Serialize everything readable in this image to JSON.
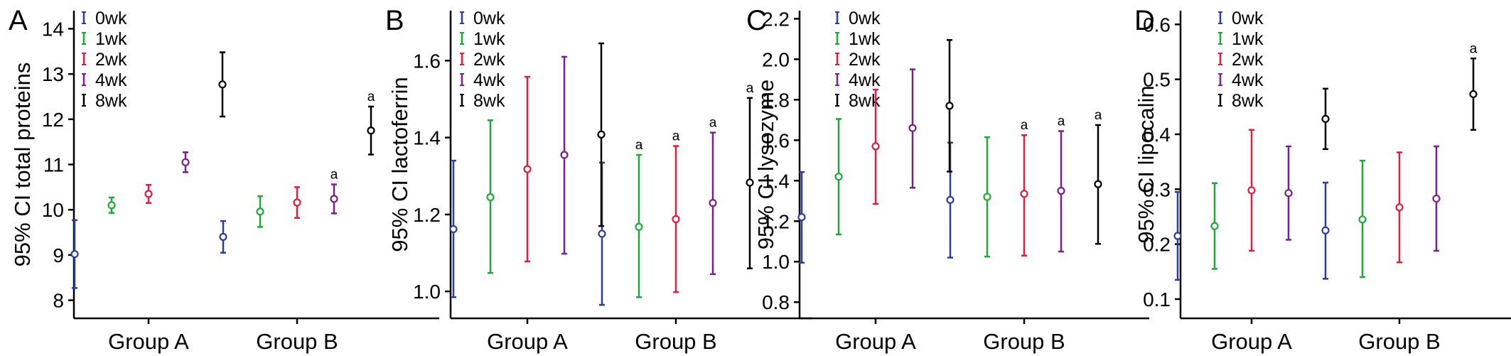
{
  "chart_data": [
    {
      "type": "errorbar",
      "panel": "A",
      "ylabel": "95% CI total proteins",
      "ylim": [
        7.6,
        14.4
      ],
      "yticks": [
        8,
        9,
        10,
        11,
        12,
        13,
        14
      ],
      "categories": [
        "Group A",
        "Group B"
      ],
      "legend_position": "top-left",
      "series": [
        {
          "name": "0wk",
          "color": "#2b3f9a",
          "points": [
            {
              "mean": 9.02,
              "low": 8.27,
              "high": 9.77,
              "annotation": ""
            },
            {
              "mean": 9.4,
              "low": 9.05,
              "high": 9.75,
              "annotation": ""
            }
          ]
        },
        {
          "name": "1wk",
          "color": "#1fa83a",
          "points": [
            {
              "mean": 10.1,
              "low": 9.93,
              "high": 10.27,
              "annotation": ""
            },
            {
              "mean": 9.96,
              "low": 9.62,
              "high": 10.3,
              "annotation": ""
            }
          ]
        },
        {
          "name": "2wk",
          "color": "#e01e3c",
          "points": [
            {
              "mean": 10.35,
              "low": 10.15,
              "high": 10.55,
              "annotation": ""
            },
            {
              "mean": 10.16,
              "low": 9.82,
              "high": 10.5,
              "annotation": ""
            }
          ]
        },
        {
          "name": "4wk",
          "color": "#7b1f8c",
          "points": [
            {
              "mean": 11.05,
              "low": 10.83,
              "high": 11.27,
              "annotation": ""
            },
            {
              "mean": 10.24,
              "low": 9.92,
              "high": 10.56,
              "annotation": "a"
            }
          ]
        },
        {
          "name": "8wk",
          "color": "#000000",
          "points": [
            {
              "mean": 12.77,
              "low": 12.06,
              "high": 13.48,
              "annotation": ""
            },
            {
              "mean": 11.75,
              "low": 11.22,
              "high": 12.28,
              "annotation": "a"
            }
          ]
        }
      ]
    },
    {
      "type": "errorbar",
      "panel": "B",
      "ylabel": "95% CI lactoferrin",
      "ylim": [
        0.93,
        1.73
      ],
      "yticks": [
        1.0,
        1.2,
        1.4,
        1.6
      ],
      "ytick_labels": [
        "1.0",
        "1.2",
        "1.4",
        "1.6"
      ],
      "categories": [
        "Group A",
        "Group B"
      ],
      "legend_position": "top-right",
      "series": [
        {
          "name": "0wk",
          "color": "#2b3f9a",
          "points": [
            {
              "mean": 1.162,
              "low": 0.985,
              "high": 1.34,
              "annotation": ""
            },
            {
              "mean": 1.15,
              "low": 0.965,
              "high": 1.335,
              "annotation": ""
            }
          ]
        },
        {
          "name": "1wk",
          "color": "#1fa83a",
          "points": [
            {
              "mean": 1.245,
              "low": 1.048,
              "high": 1.445,
              "annotation": ""
            },
            {
              "mean": 1.168,
              "low": 0.985,
              "high": 1.355,
              "annotation": "a"
            }
          ]
        },
        {
          "name": "2wk",
          "color": "#e01e3c",
          "points": [
            {
              "mean": 1.318,
              "low": 1.078,
              "high": 1.558,
              "annotation": ""
            },
            {
              "mean": 1.188,
              "low": 0.998,
              "high": 1.378,
              "annotation": "a"
            }
          ]
        },
        {
          "name": "4wk",
          "color": "#7b1f8c",
          "points": [
            {
              "mean": 1.355,
              "low": 1.098,
              "high": 1.61,
              "annotation": ""
            },
            {
              "mean": 1.23,
              "low": 1.045,
              "high": 1.413,
              "annotation": "a"
            }
          ]
        },
        {
          "name": "8wk",
          "color": "#000000",
          "points": [
            {
              "mean": 1.408,
              "low": 1.17,
              "high": 1.645,
              "annotation": ""
            },
            {
              "mean": 1.283,
              "low": 1.06,
              "high": 1.503,
              "annotation": "a"
            }
          ]
        }
      ]
    },
    {
      "type": "errorbar",
      "panel": "C",
      "ylabel": "95% CI lysozyme",
      "ylim": [
        0.72,
        2.24
      ],
      "yticks": [
        0.8,
        1.0,
        1.2,
        1.4,
        1.6,
        1.8,
        2.0,
        2.2
      ],
      "ytick_labels": [
        "0.8",
        "1.0",
        "1.2",
        "1.4",
        "1.6",
        "1.8",
        "2.0",
        "2.2"
      ],
      "categories": [
        "Group A",
        "Group B"
      ],
      "legend_position": "top-left",
      "series": [
        {
          "name": "0wk",
          "color": "#2b3f9a",
          "points": [
            {
              "mean": 1.22,
              "low": 0.995,
              "high": 1.443,
              "annotation": ""
            },
            {
              "mean": 1.305,
              "low": 1.02,
              "high": 1.588,
              "annotation": ""
            }
          ]
        },
        {
          "name": "1wk",
          "color": "#1fa83a",
          "points": [
            {
              "mean": 1.42,
              "low": 1.135,
              "high": 1.705,
              "annotation": ""
            },
            {
              "mean": 1.32,
              "low": 1.025,
              "high": 1.615,
              "annotation": ""
            }
          ]
        },
        {
          "name": "2wk",
          "color": "#e01e3c",
          "points": [
            {
              "mean": 1.57,
              "low": 1.285,
              "high": 1.85,
              "annotation": ""
            },
            {
              "mean": 1.335,
              "low": 1.03,
              "high": 1.625,
              "annotation": "a"
            }
          ]
        },
        {
          "name": "4wk",
          "color": "#7b1f8c",
          "points": [
            {
              "mean": 1.66,
              "low": 1.365,
              "high": 1.95,
              "annotation": ""
            },
            {
              "mean": 1.35,
              "low": 1.05,
              "high": 1.645,
              "annotation": "a"
            }
          ]
        },
        {
          "name": "8wk",
          "color": "#000000",
          "points": [
            {
              "mean": 1.77,
              "low": 1.445,
              "high": 2.095,
              "annotation": ""
            },
            {
              "mean": 1.383,
              "low": 1.088,
              "high": 1.675,
              "annotation": "a"
            }
          ]
        }
      ]
    },
    {
      "type": "errorbar",
      "panel": "D",
      "ylabel": "95% CI lipocalin",
      "ylim": [
        0.065,
        0.625
      ],
      "yticks": [
        0.1,
        0.2,
        0.3,
        0.4,
        0.5,
        0.6
      ],
      "ytick_labels": [
        "0.1",
        "0.2",
        "0.3",
        "0.4",
        "0.5",
        "0.6"
      ],
      "categories": [
        "Group A",
        "Group B"
      ],
      "legend_position": "top-left",
      "series": [
        {
          "name": "0wk",
          "color": "#2b3f9a",
          "points": [
            {
              "mean": 0.215,
              "low": 0.135,
              "high": 0.295,
              "annotation": ""
            },
            {
              "mean": 0.225,
              "low": 0.137,
              "high": 0.312,
              "annotation": ""
            }
          ]
        },
        {
          "name": "1wk",
          "color": "#1fa83a",
          "points": [
            {
              "mean": 0.233,
              "low": 0.155,
              "high": 0.311,
              "annotation": ""
            },
            {
              "mean": 0.245,
              "low": 0.14,
              "high": 0.352,
              "annotation": ""
            }
          ]
        },
        {
          "name": "2wk",
          "color": "#e01e3c",
          "points": [
            {
              "mean": 0.298,
              "low": 0.188,
              "high": 0.408,
              "annotation": ""
            },
            {
              "mean": 0.267,
              "low": 0.167,
              "high": 0.367,
              "annotation": ""
            }
          ]
        },
        {
          "name": "4wk",
          "color": "#7b1f8c",
          "points": [
            {
              "mean": 0.293,
              "low": 0.208,
              "high": 0.378,
              "annotation": ""
            },
            {
              "mean": 0.283,
              "low": 0.188,
              "high": 0.378,
              "annotation": ""
            }
          ]
        },
        {
          "name": "8wk",
          "color": "#000000",
          "points": [
            {
              "mean": 0.428,
              "low": 0.373,
              "high": 0.483,
              "annotation": ""
            },
            {
              "mean": 0.473,
              "low": 0.408,
              "high": 0.538,
              "annotation": "a"
            }
          ]
        }
      ]
    }
  ]
}
